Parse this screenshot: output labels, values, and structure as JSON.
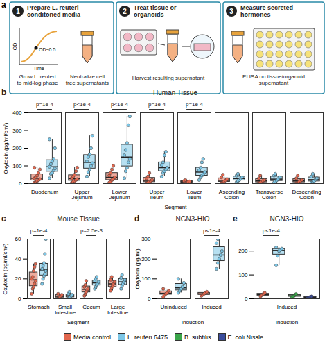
{
  "diagram": {
    "panel_label": "a",
    "steps": [
      {
        "number": 1,
        "title": "Prepare L. reuteri conditoned media",
        "graph": {
          "y_label": "OD",
          "x_label": "Time",
          "marker_label": "OD~0.5"
        },
        "captions": [
          "Grow L. reuteri to mid-log phase",
          "Neutralize cell free supernatants"
        ]
      },
      {
        "number": 2,
        "title": "Treat tissue or organoids",
        "captions": [
          "Harvest resulting supernatant"
        ]
      },
      {
        "number": 3,
        "title": "Measure secreted hormones",
        "captions": [
          "ELISA on tissue/organoid supernatant"
        ]
      }
    ]
  },
  "chart_data": [
    {
      "type": "box",
      "panel_label": "b",
      "title": "Human Tissue",
      "x_label": "Segment",
      "y_label": "Oxytocin (pg/ml/cm²)",
      "categories": [
        "Duodenum",
        "Upper Jejunum",
        "Lower Jejunum",
        "Upper Ileum",
        "Lower Ileum",
        "Ascending Colon",
        "Transverse Colon",
        "Descending Colon"
      ],
      "series": [
        {
          "name": "Media control",
          "color": "#e2674e",
          "values": [
            [
              5,
              10,
              15,
              20,
              25,
              30,
              35,
              45,
              60,
              80,
              90
            ],
            [
              5,
              10,
              15,
              20,
              25,
              30,
              40,
              50,
              70,
              90
            ],
            [
              5,
              10,
              20,
              25,
              35,
              45,
              60,
              80,
              100
            ],
            [
              2,
              5,
              10,
              15,
              20,
              30,
              40,
              60
            ],
            [
              2,
              5,
              8,
              10,
              12,
              15,
              20
            ],
            [
              3,
              8,
              12,
              18,
              25,
              35,
              50
            ],
            [
              3,
              5,
              10,
              15,
              20,
              30,
              45
            ],
            [
              2,
              5,
              10,
              15,
              20,
              30,
              45
            ]
          ]
        },
        {
          "name": "L. reuteri 6475",
          "color": "#7cc6e6",
          "values": [
            [
              30,
              55,
              60,
              75,
              85,
              95,
              110,
              125,
              140,
              200,
              250
            ],
            [
              40,
              65,
              80,
              100,
              115,
              125,
              150,
              165,
              200,
              270
            ],
            [
              30,
              70,
              90,
              120,
              140,
              160,
              190,
              230,
              330,
              380
            ],
            [
              40,
              60,
              70,
              80,
              90,
              105,
              120,
              160,
              180
            ],
            [
              20,
              35,
              45,
              55,
              65,
              75,
              90,
              120,
              140
            ],
            [
              8,
              15,
              20,
              28,
              35,
              45,
              55
            ],
            [
              5,
              12,
              18,
              25,
              35,
              45,
              55
            ],
            [
              5,
              10,
              15,
              22,
              30,
              40,
              55
            ]
          ]
        }
      ],
      "ylim": [
        0,
        400
      ],
      "yticks": [
        0,
        100,
        200,
        300,
        400
      ],
      "annotations": [
        {
          "category": "Duodenum",
          "text": "p=1e-4"
        },
        {
          "category": "Upper Jejunum",
          "text": "p<1e-4"
        },
        {
          "category": "Lower Jejunum",
          "text": "p<1e-4"
        },
        {
          "category": "Upper Ileum",
          "text": "p=1e-4"
        },
        {
          "category": "Lower Ileum",
          "text": "p=1e-4"
        }
      ]
    },
    {
      "type": "box",
      "panel_label": "c",
      "title": "Mouse Tissue",
      "x_label": "Segment",
      "y_label": "Oxytocin (pg/ml/cm²)",
      "categories": [
        "Stomach",
        "Small Intestine",
        "Cecum",
        "Large Intestine"
      ],
      "series": [
        {
          "name": "Media control",
          "color": "#e2674e",
          "values": [
            [
              5,
              10,
              12,
              15,
              18,
              20,
              22,
              28,
              32,
              35
            ],
            [
              0,
              1,
              2,
              3,
              4,
              5
            ],
            [
              3,
              5,
              7,
              9,
              10,
              12,
              14,
              18
            ],
            [
              8,
              11,
              13,
              15,
              17,
              19,
              22
            ]
          ]
        },
        {
          "name": "L. reuteri 6475",
          "color": "#7cc6e6",
          "values": [
            [
              15,
              20,
              23,
              25,
              28,
              30,
              33,
              36,
              45,
              60
            ],
            [
              0,
              1,
              2,
              3,
              4,
              5,
              7
            ],
            [
              10,
              12,
              14,
              15,
              17,
              18,
              20,
              22
            ],
            [
              10,
              13,
              15,
              17,
              19,
              21,
              24
            ]
          ]
        }
      ],
      "ylim": [
        0,
        60
      ],
      "yticks": [
        0,
        20,
        40,
        60
      ],
      "annotations": [
        {
          "category": "Stomach",
          "text": "p=1e-4"
        },
        {
          "category": "Cecum",
          "text": "p=2.5e-3"
        }
      ]
    },
    {
      "type": "box",
      "panel_label": "d",
      "title": "NGN3-HIO",
      "x_label": "Induction",
      "y_label": "Oxytocin (pg/ml)",
      "categories": [
        "Uninduced",
        "Induced"
      ],
      "series": [
        {
          "name": "Media control",
          "color": "#e2674e",
          "values": [
            [
              10,
              20,
              25,
              30,
              40,
              50
            ],
            [
              15,
              20,
              25,
              30,
              35
            ]
          ]
        },
        {
          "name": "L. reuteri 6475",
          "color": "#7cc6e6",
          "values": [
            [
              30,
              40,
              50,
              60,
              80,
              100
            ],
            [
              150,
              180,
              200,
              220,
              240,
              280,
              300
            ]
          ]
        }
      ],
      "ylim": [
        0,
        300
      ],
      "yticks": [
        0,
        100,
        200,
        300
      ],
      "annotations": [
        {
          "category": "Induced",
          "text": "p<1e-4"
        }
      ]
    },
    {
      "type": "box",
      "panel_label": "e",
      "title": "NGN3-HIO",
      "x_label": "Induction",
      "categories": [
        "Induced"
      ],
      "series": [
        {
          "name": "Media control",
          "color": "#e2674e",
          "values": [
            [
              10,
              15,
              20,
              25
            ]
          ]
        },
        {
          "name": "L. reuteri 6475",
          "color": "#7cc6e6",
          "values": [
            [
              140,
              180,
              200,
              205,
              210,
              215
            ]
          ]
        },
        {
          "name": "B. subtilis",
          "color": "#3aa54a",
          "values": [
            [
              5,
              10,
              15,
              20
            ]
          ]
        },
        {
          "name": "E. coli Nissle",
          "color": "#3b4c9b",
          "values": [
            [
              3,
              5,
              8,
              10
            ]
          ]
        }
      ],
      "ylim": [
        0,
        250
      ],
      "yticks": [
        0,
        100,
        200
      ],
      "legend": "bottom",
      "annotations": [
        {
          "category": "Induced",
          "text": "p<1e-4"
        }
      ]
    }
  ]
}
